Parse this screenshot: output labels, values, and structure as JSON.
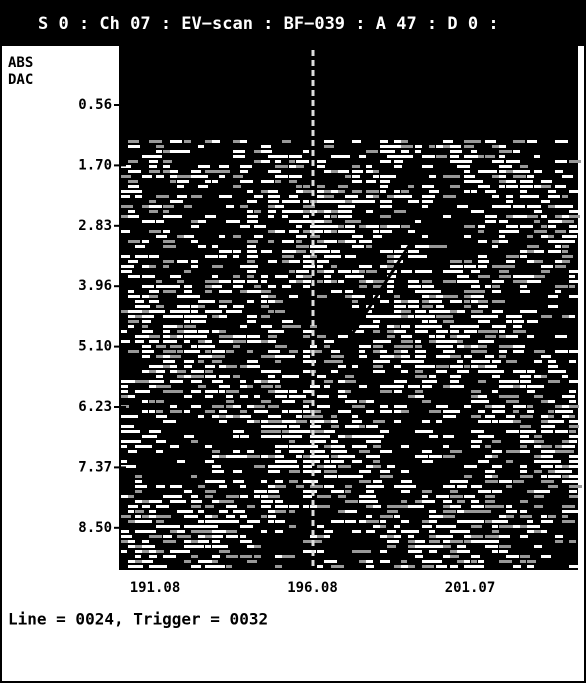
{
  "header": {
    "title": "S 0 : Ch 07 : EV−scan : BF−039 : A 47 : D 0 :"
  },
  "axis": {
    "y_title": [
      "ABS",
      "DAC"
    ],
    "y_labels": [
      "0.56",
      "1.70",
      "2.83",
      "3.96",
      "5.10",
      "6.23",
      "7.37",
      "8.50"
    ],
    "x_labels": [
      "191.08",
      "196.08",
      "201.07"
    ]
  },
  "status": "Line = 0024, Trigger = 0032"
}
